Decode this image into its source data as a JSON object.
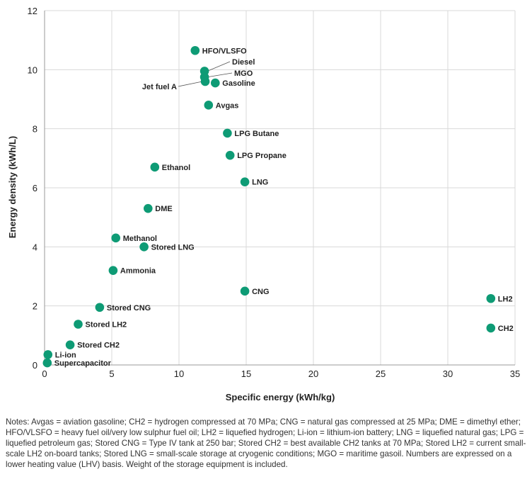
{
  "chart_data": {
    "type": "scatter",
    "xlabel": "Specific energy (kWh/kg)",
    "ylabel": "Energy density (kWh/L)",
    "xlim": [
      0,
      35
    ],
    "ylim": [
      0,
      12
    ],
    "xticks": [
      "0",
      "5",
      "10",
      "15",
      "20",
      "25",
      "30",
      "35"
    ],
    "yticks": [
      "0",
      "2",
      "4",
      "6",
      "8",
      "10",
      "12"
    ],
    "grid": true,
    "marker_color": "#0e9b75",
    "points": [
      {
        "label": "HFO/VLSFO",
        "x": 11.2,
        "y": 10.65
      },
      {
        "label": "Diesel",
        "x": 11.9,
        "y": 9.95
      },
      {
        "label": "MGO",
        "x": 11.9,
        "y": 9.75
      },
      {
        "label": "Jet fuel A",
        "x": 11.95,
        "y": 9.6
      },
      {
        "label": "Gasoline",
        "x": 12.7,
        "y": 9.55
      },
      {
        "label": "Avgas",
        "x": 12.2,
        "y": 8.8
      },
      {
        "label": "LPG Butane",
        "x": 13.6,
        "y": 7.85
      },
      {
        "label": "LPG Propane",
        "x": 13.8,
        "y": 7.1
      },
      {
        "label": "Ethanol",
        "x": 8.2,
        "y": 6.7
      },
      {
        "label": "LNG",
        "x": 14.9,
        "y": 6.2
      },
      {
        "label": "DME",
        "x": 7.7,
        "y": 5.3
      },
      {
        "label": "Methanol",
        "x": 5.3,
        "y": 4.3
      },
      {
        "label": "Stored LNG",
        "x": 7.4,
        "y": 4.0
      },
      {
        "label": "Ammonia",
        "x": 5.1,
        "y": 3.2
      },
      {
        "label": "CNG",
        "x": 14.9,
        "y": 2.5
      },
      {
        "label": "LH2",
        "x": 33.2,
        "y": 2.25
      },
      {
        "label": "Stored CNG",
        "x": 4.1,
        "y": 1.95
      },
      {
        "label": "CH2",
        "x": 33.2,
        "y": 1.25
      },
      {
        "label": "Stored LH2",
        "x": 2.5,
        "y": 1.38
      },
      {
        "label": "Stored CH2",
        "x": 1.9,
        "y": 0.68
      },
      {
        "label": "Li-ion",
        "x": 0.25,
        "y": 0.35
      },
      {
        "label": "Supercapacitor",
        "x": 0.2,
        "y": 0.07
      }
    ]
  },
  "notes": "Notes: Avgas = aviation gasoline; CH2 = hydrogen compressed at 70 MPa; CNG = natural gas compressed at 25 MPa; DME = dimethyl ether; HFO/VLSFO = heavy fuel oil/very low sulphur fuel oil; LH2 = liquefied hydrogen; Li-ion = lithium-ion battery; LNG = liquefied natural gas; LPG = liquefied petroleum gas; Stored CNG = Type IV tank at 250 bar; Stored CH2 = best available CH2 tanks at 70 MPa; Stored LH2 = current small-scale LH2 on-board tanks; Stored LNG = small-scale storage at cryogenic conditions; MGO = maritime gasoil. Numbers are expressed on a lower heating value (LHV) basis. Weight of the storage equipment is included."
}
